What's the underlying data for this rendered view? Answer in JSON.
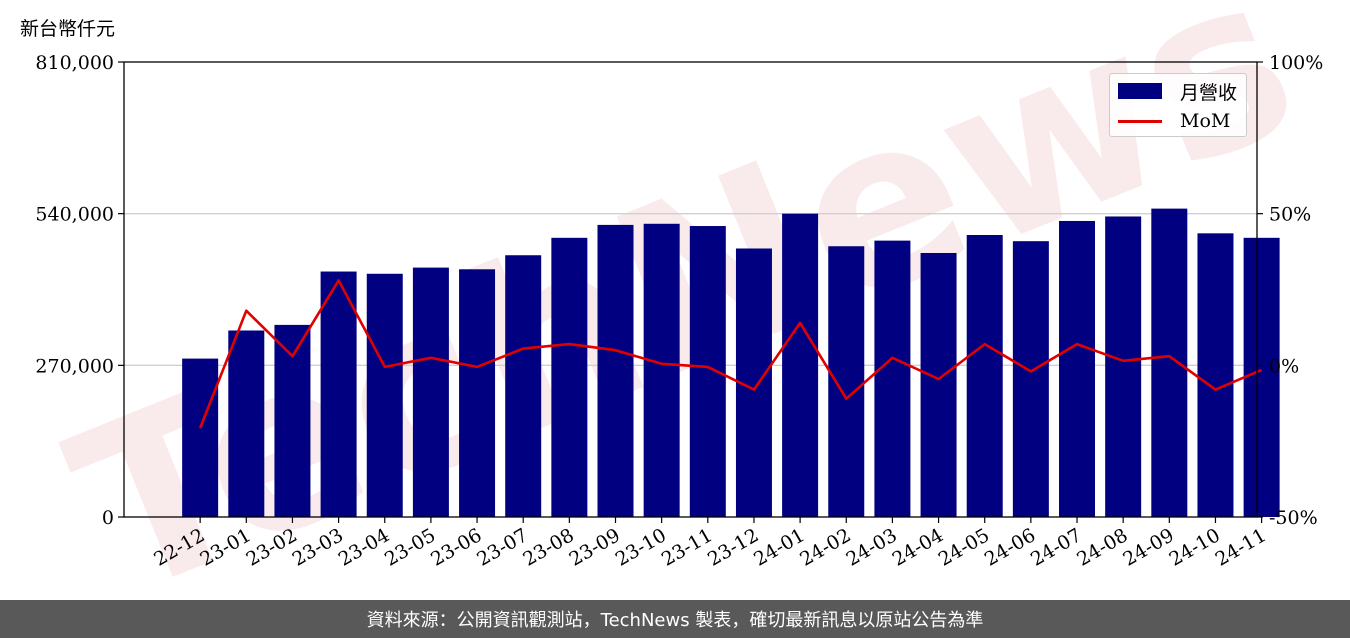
{
  "unit_label": "新台幣仟元",
  "watermark": "TechNews",
  "footer": "資料來源：公開資訊觀測站，TechNews 製表，確切最新訊息以原站公告為準",
  "colors": {
    "bar": "#000080",
    "line": "#e00000",
    "grid": "#d0d0d0",
    "footer_bg": "#595959"
  },
  "chart_data": {
    "type": "bar",
    "categories": [
      "22-12",
      "23-01",
      "23-02",
      "23-03",
      "23-04",
      "23-05",
      "23-06",
      "23-07",
      "23-08",
      "23-09",
      "23-10",
      "23-11",
      "23-12",
      "24-01",
      "24-02",
      "24-03",
      "24-04",
      "24-05",
      "24-06",
      "24-07",
      "24-08",
      "24-09",
      "24-10",
      "24-11"
    ],
    "series": [
      {
        "name": "月營收",
        "type": "bar",
        "axis": "left",
        "values": [
          282000,
          332000,
          342000,
          437000,
          433000,
          444000,
          441000,
          466000,
          497000,
          520000,
          522000,
          518000,
          478000,
          540000,
          482000,
          492000,
          470000,
          502000,
          491000,
          527000,
          535000,
          549000,
          505000,
          497000
        ]
      },
      {
        "name": "MoM",
        "type": "line",
        "axis": "right",
        "values": [
          -20.7,
          18.0,
          3.0,
          28.0,
          -0.5,
          2.5,
          -0.5,
          5.5,
          7.0,
          5.0,
          0.5,
          -0.5,
          -8.0,
          14.0,
          -11.0,
          2.5,
          -4.5,
          7.0,
          -2.0,
          7.0,
          1.5,
          3.0,
          -8.0,
          -1.5
        ]
      }
    ],
    "y_left": {
      "min": 0,
      "max": 810000,
      "ticks": [
        0,
        270000,
        540000,
        810000
      ],
      "tick_labels": [
        "0",
        "270,000",
        "540,000",
        "810,000"
      ]
    },
    "y_right": {
      "min": -50,
      "max": 100,
      "ticks": [
        -50,
        0,
        50,
        100
      ],
      "tick_labels": [
        "-50%",
        "0%",
        "50%",
        "100%"
      ]
    },
    "grid": "horizontal",
    "legend_position": "top-right"
  }
}
